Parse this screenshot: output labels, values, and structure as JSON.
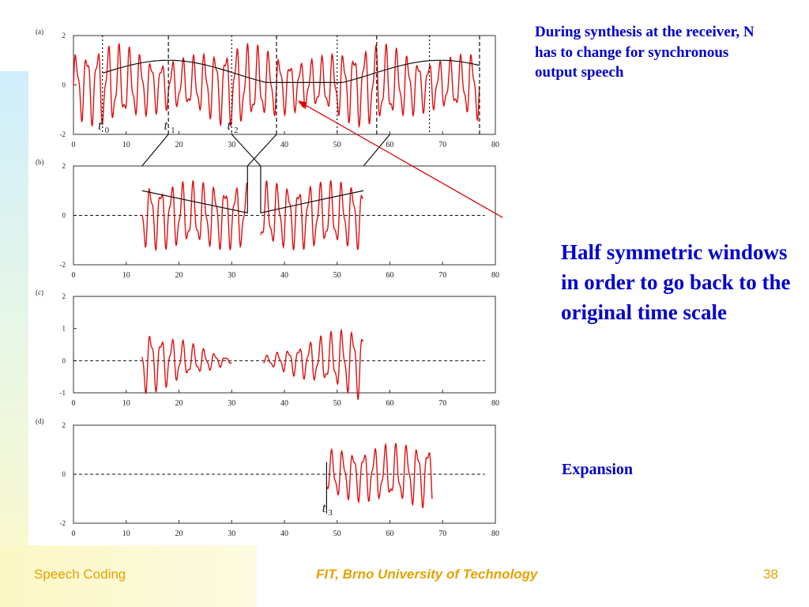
{
  "notes": {
    "top": "During synthesis at the receiver, N has to change for synchronous output speech",
    "main": "Half symmetric windows in order to go back to the original time scale",
    "expansion": "Expansion"
  },
  "footer": {
    "left": "Speech Coding",
    "center": "FIT, Brno University of Technology",
    "right": "38"
  },
  "colors": {
    "signal": "#dd1111",
    "note": "#0000cc",
    "footer": "#e6a100"
  },
  "figure": {
    "panels": [
      {
        "label": "(a)",
        "xticks": [
          "0",
          "10",
          "20",
          "30",
          "40",
          "50",
          "60",
          "70",
          "80"
        ],
        "yticks": [
          "2",
          "0",
          "-2"
        ],
        "markers": [
          {
            "sym": "t",
            "sub": "0"
          },
          {
            "sym": "t",
            "sub": "1"
          },
          {
            "sym": "t",
            "sub": "2"
          }
        ]
      },
      {
        "label": "(b)",
        "xticks": [
          "0",
          "10",
          "20",
          "30",
          "40",
          "50",
          "60",
          "70",
          "80"
        ],
        "yticks": [
          "2",
          "0",
          "-2"
        ],
        "markers": []
      },
      {
        "label": "(c)",
        "xticks": [
          "0",
          "10",
          "20",
          "30",
          "40",
          "50",
          "60",
          "70",
          "80"
        ],
        "yticks": [
          "2",
          "1",
          "0",
          "-1"
        ],
        "markers": []
      },
      {
        "label": "(d)",
        "xticks": [
          "0",
          "10",
          "20",
          "30",
          "40",
          "50",
          "60",
          "70",
          "80"
        ],
        "yticks": [
          "2",
          "0",
          "-2"
        ],
        "markers": [
          {
            "sym": "t",
            "sub": "3"
          }
        ]
      }
    ]
  }
}
